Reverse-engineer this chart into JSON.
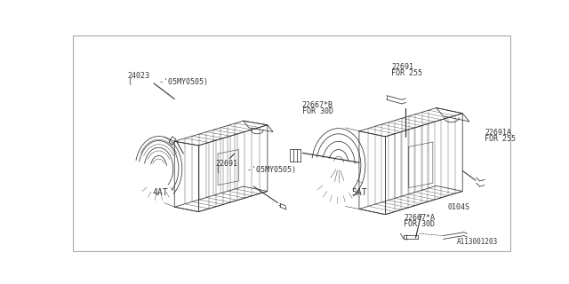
{
  "bg_color": "#ffffff",
  "border_color": "#aaaaaa",
  "line_color": "#333333",
  "diagram_id": "A113001203",
  "font_color": "#333333",
  "font_size": 6.0,
  "left_label": "4AT",
  "right_label": "5AT",
  "labels": {
    "left_24023_line1": "24023",
    "left_24023_line2": "(      -'05MY0505)",
    "left_22691_line1": "22691",
    "left_22691_line2": "(      -'05MY0505)",
    "right_22691_line1": "22691",
    "right_22691_line2": "FOR 255",
    "right_22691A_line1": "22691A",
    "right_22691A_line2": "FOR 255",
    "right_22667B_line1": "22667*B",
    "right_22667B_line2": "FOR 30D",
    "right_22667A_line1": "22667*A",
    "right_22667A_line2": "FOR 30D",
    "right_0104S": "0104S"
  }
}
